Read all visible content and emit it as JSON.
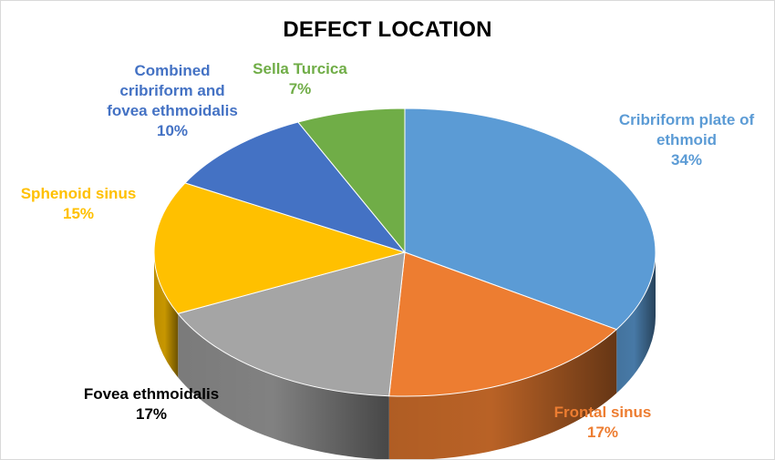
{
  "chart_data": {
    "type": "pie",
    "title": "DEFECT LOCATION",
    "categories": [
      "Cribriform plate of ethmoid",
      "Frontal sinus",
      "Fovea ethmoidalis",
      "Sphenoid sinus",
      "Combined cribriform and fovea ethmoidalis",
      "Sella Turcica"
    ],
    "values": [
      34,
      17,
      17,
      15,
      10,
      7
    ],
    "display": [
      "34%",
      "17%",
      "17%",
      "15%",
      "10%",
      "7%"
    ],
    "colors": [
      "#5B9BD5",
      "#ED7D31",
      "#A5A5A5",
      "#FFC000",
      "#4472C4",
      "#70AD47"
    ],
    "label_colors": [
      "#5B9BD5",
      "#ED7D31",
      "#000000",
      "#FFC000",
      "#4472C4",
      "#70AD47"
    ],
    "label_lines": [
      [
        "Cribriform plate of",
        "ethmoid"
      ],
      [
        "Frontal sinus"
      ],
      [
        "Fovea ethmoidalis"
      ],
      [
        "Sphenoid sinus"
      ],
      [
        "Combined",
        "cribriform and",
        "fovea ethmoidalis"
      ],
      [
        "Sella Turcica"
      ]
    ],
    "legend": "none",
    "grid": false
  }
}
